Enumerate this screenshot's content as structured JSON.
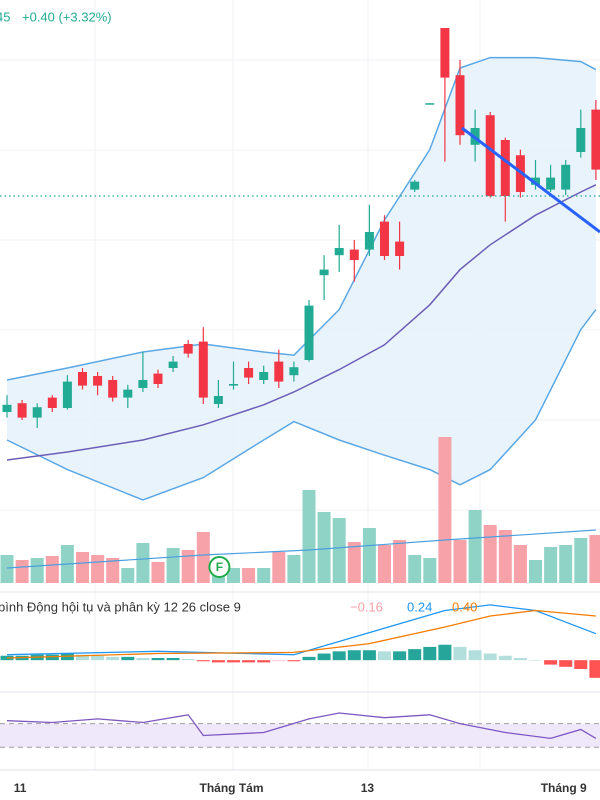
{
  "header": {
    "price_fragment": "45",
    "change": "+0.40 (+3.32%)"
  },
  "chart_data": {
    "type": "candlestick",
    "categories": [
      null,
      "11",
      null,
      null,
      null,
      null,
      null,
      null,
      null,
      null,
      null,
      null,
      null,
      null,
      null,
      "Tháng Tám",
      null,
      null,
      null,
      null,
      null,
      null,
      null,
      null,
      "13",
      null,
      null,
      null,
      null,
      null,
      null,
      null,
      null,
      null,
      null,
      null,
      null,
      "Tháng 9",
      null,
      null
    ],
    "open": [
      9.75,
      9.86,
      9.68,
      9.93,
      9.8,
      10.25,
      10.2,
      10.15,
      9.93,
      10.05,
      10.23,
      10.3,
      10.6,
      10.63,
      9.85,
      10.08,
      10.3,
      10.15,
      10.38,
      10.21,
      10.4,
      11.46,
      11.71,
      11.78,
      11.78,
      12.13,
      11.88,
      12.53,
      13.6,
      14.55,
      13.96,
      13.09,
      13.46,
      13.15,
      12.96,
      12.59,
      12.53,
      12.53,
      13.0,
      13.53
    ],
    "high": [
      9.96,
      9.9,
      9.86,
      9.96,
      10.21,
      10.3,
      10.25,
      10.2,
      10.09,
      10.5,
      10.28,
      10.45,
      10.65,
      10.81,
      10.15,
      10.38,
      10.38,
      10.33,
      10.53,
      10.38,
      11.15,
      11.71,
      12.09,
      11.9,
      12.34,
      12.21,
      12.13,
      12.65,
      13.61,
      14.55,
      14.15,
      13.53,
      13.5,
      13.18,
      13.03,
      12.9,
      12.84,
      12.9,
      13.53,
      13.65
    ],
    "low": [
      9.68,
      9.65,
      9.55,
      9.75,
      9.78,
      10.03,
      9.96,
      9.88,
      9.8,
      10.0,
      10.05,
      10.25,
      10.43,
      9.85,
      9.8,
      10.03,
      10.1,
      10.1,
      10.05,
      10.13,
      10.38,
      11.15,
      11.5,
      11.38,
      11.7,
      11.65,
      11.53,
      12.5,
      13.6,
      12.88,
      13.09,
      12.88,
      12.43,
      12.13,
      12.43,
      12.53,
      12.5,
      12.46,
      12.93,
      12.65
    ],
    "close": [
      9.84,
      9.68,
      9.81,
      9.8,
      10.13,
      10.08,
      10.08,
      9.93,
      10.03,
      10.15,
      10.1,
      10.38,
      10.48,
      9.93,
      9.95,
      10.1,
      10.18,
      10.25,
      10.13,
      10.31,
      11.08,
      11.53,
      11.8,
      11.65,
      12.0,
      11.7,
      11.7,
      12.63,
      13.61,
      13.93,
      13.21,
      13.3,
      12.45,
      12.45,
      12.5,
      12.68,
      12.68,
      12.84,
      13.3,
      12.78
    ],
    "ylim": [
      7.525,
      14.9
    ],
    "up_color": "#22ab94",
    "down_color": "#f23645",
    "price_line": 12.45,
    "bollinger": {
      "x": [
        0,
        4,
        9,
        13,
        17,
        19,
        22,
        25,
        28,
        30,
        32,
        35,
        38,
        39
      ],
      "upper": [
        10.15,
        10.3,
        10.5,
        10.6,
        10.5,
        10.46,
        11.03,
        12.15,
        13.03,
        14.05,
        14.18,
        14.18,
        14.13,
        14.03
      ],
      "basis": [
        9.15,
        9.25,
        9.4,
        9.59,
        9.84,
        10.0,
        10.28,
        10.59,
        11.09,
        11.53,
        11.84,
        12.21,
        12.5,
        12.59
      ],
      "lower": [
        9.4,
        9.03,
        8.65,
        8.93,
        9.4,
        9.63,
        9.4,
        9.21,
        9.03,
        8.84,
        9.03,
        9.65,
        10.78,
        11.03
      ],
      "band_color": "#5aa7e6",
      "basis_color": "#6b5fb5",
      "fill": "#e3f0fb"
    },
    "volume": {
      "values": [
        28,
        23,
        25,
        27,
        38,
        31,
        28,
        25,
        15,
        40,
        21,
        35,
        33,
        51,
        23,
        15,
        15,
        15,
        31,
        28,
        93,
        71,
        65,
        41,
        55,
        38,
        43,
        28,
        25,
        146,
        43,
        73,
        58,
        53,
        38,
        23,
        36,
        38,
        45,
        48
      ],
      "ylim": [
        0,
        160
      ],
      "ma_x": [
        0,
        13,
        20,
        29,
        39
      ],
      "ma": [
        15,
        28,
        33,
        43,
        53
      ],
      "up_color": "#8fd3c6",
      "down_color": "#f7a1a8",
      "ma_color": "#4a9fe0"
    },
    "marker": {
      "index": 14,
      "label": "F",
      "color": "#22ab4a"
    },
    "macd": {
      "title": "bình Động hội tụ và phân kỳ 12 26 close 9",
      "legend_values": [
        -0.16,
        0.24,
        0.4
      ],
      "legend_labels": [
        "−0.16",
        "0.24",
        "0.40"
      ],
      "legend_colors": [
        "#f7a1a8",
        "#2196f3",
        "#f57c00"
      ],
      "histogram": [
        0.04,
        0.04,
        0.05,
        0.05,
        0.06,
        0.05,
        0.04,
        0.03,
        0.03,
        0.02,
        0.02,
        0.02,
        0.01,
        -0.01,
        -0.02,
        -0.02,
        -0.02,
        -0.02,
        -0.01,
        -0.01,
        0.03,
        0.06,
        0.08,
        0.09,
        0.09,
        0.08,
        0.08,
        0.1,
        0.12,
        0.14,
        0.12,
        0.09,
        0.06,
        0.04,
        0.02,
        0.0,
        -0.04,
        -0.06,
        -0.08,
        -0.16
      ],
      "x": [
        0,
        10,
        19,
        24,
        29,
        32,
        35,
        39
      ],
      "macd": [
        0.05,
        0.08,
        0.05,
        0.25,
        0.45,
        0.5,
        0.45,
        0.24
      ],
      "signal": [
        0.02,
        0.06,
        0.07,
        0.15,
        0.3,
        0.4,
        0.45,
        0.4
      ],
      "ylim": [
        -0.27,
        0.59
      ]
    },
    "rsi": {
      "x": [
        0,
        3,
        6,
        9,
        12,
        13,
        17,
        20,
        22,
        25,
        28,
        30,
        33,
        36,
        38,
        39
      ],
      "values": [
        75,
        72,
        78,
        72,
        85,
        50,
        55,
        78,
        88,
        80,
        85,
        70,
        55,
        45,
        60,
        45
      ],
      "levels": [
        70,
        30
      ],
      "ylim": [
        0,
        110
      ],
      "color": "#7e57c2",
      "fill": "#efe8fb"
    }
  }
}
